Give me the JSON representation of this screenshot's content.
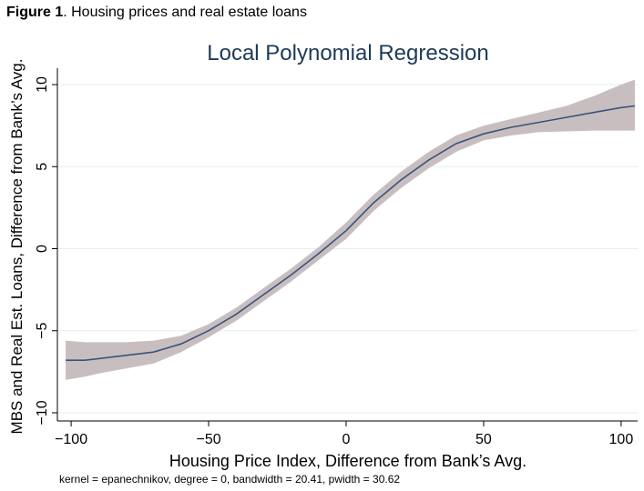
{
  "caption": {
    "label": "Figure 1",
    "text": ". Housing prices and real estate loans"
  },
  "colors": {
    "line": "#3a5478",
    "band": "#c8bec0",
    "grid": "#e6eef2",
    "axis": "#000000",
    "title": "#1e3a58"
  },
  "chart_data": {
    "type": "line",
    "title": "Local Polynomial Regression",
    "xlabel": "Housing Price Index, Difference from Bank’s Avg.",
    "ylabel": "MBS and Real Est. Loans, Difference from Bank’s Avg.",
    "note": "kernel = epanechnikov, degree = 0, bandwidth = 20.41, pwidth = 30.62",
    "xlim": [
      -105,
      106
    ],
    "ylim": [
      -10.5,
      11
    ],
    "x_ticks": [
      -100,
      -50,
      0,
      50,
      100
    ],
    "x_tick_labels": [
      "−100",
      "−50",
      "0",
      "50",
      "100"
    ],
    "y_ticks": [
      -10,
      -5,
      0,
      5,
      10
    ],
    "y_tick_labels": [
      "−10",
      "−5",
      "0",
      "5",
      "10"
    ],
    "grid": "horizontal",
    "series": [
      {
        "name": "fit",
        "x": [
          -102,
          -95,
          -90,
          -80,
          -70,
          -60,
          -50,
          -40,
          -30,
          -20,
          -10,
          0,
          10,
          20,
          30,
          40,
          50,
          60,
          70,
          80,
          90,
          100,
          105
        ],
        "y": [
          -6.8,
          -6.8,
          -6.7,
          -6.5,
          -6.3,
          -5.8,
          -5.0,
          -4.0,
          -2.8,
          -1.6,
          -0.3,
          1.1,
          2.8,
          4.2,
          5.4,
          6.4,
          7.0,
          7.4,
          7.7,
          8.0,
          8.3,
          8.6,
          8.7
        ],
        "lower": [
          -8.0,
          -7.8,
          -7.6,
          -7.3,
          -7.0,
          -6.3,
          -5.4,
          -4.4,
          -3.2,
          -2.0,
          -0.7,
          0.6,
          2.3,
          3.7,
          4.9,
          5.9,
          6.6,
          6.9,
          7.1,
          7.15,
          7.2,
          7.2,
          7.2
        ],
        "upper": [
          -5.6,
          -5.7,
          -5.7,
          -5.7,
          -5.6,
          -5.3,
          -4.6,
          -3.6,
          -2.4,
          -1.2,
          0.1,
          1.6,
          3.3,
          4.7,
          5.9,
          6.9,
          7.5,
          7.9,
          8.3,
          8.7,
          9.3,
          10.0,
          10.3
        ]
      }
    ]
  }
}
